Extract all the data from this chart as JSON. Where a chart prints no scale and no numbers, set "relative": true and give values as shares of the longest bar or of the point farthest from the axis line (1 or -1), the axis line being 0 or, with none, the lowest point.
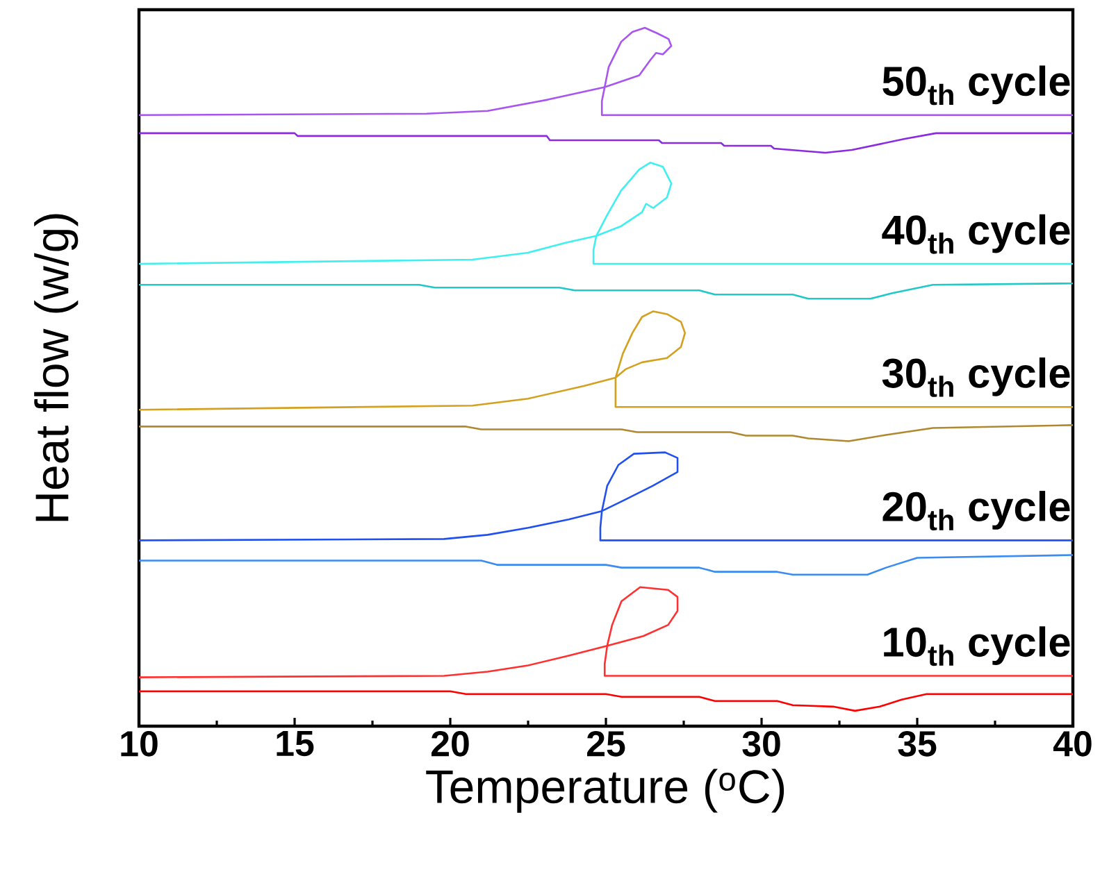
{
  "chart_data": {
    "type": "line",
    "relative": true,
    "xlabel": "Temperature ($^{o}$C)",
    "ylabel": "Heat flow  (w/g)",
    "xlim": [
      10,
      40
    ],
    "xticks": [
      10,
      15,
      20,
      25,
      30,
      35,
      40
    ],
    "series": [
      {
        "name": "10$_{th}$ cycle",
        "color": "#ff3030",
        "x": [
          40,
          24.96,
          24.96,
          25.04,
          25.2,
          25.5,
          26.1,
          27.0,
          27.3,
          27.3,
          27.0,
          26.2,
          25.04,
          23.8,
          22.5,
          21.2,
          19.8,
          10
        ],
        "values": [
          0.072,
          0.072,
          0.089,
          0.115,
          0.145,
          0.179,
          0.199,
          0.195,
          0.185,
          0.165,
          0.145,
          0.129,
          0.115,
          0.101,
          0.087,
          0.078,
          0.072,
          0.07
        ]
      },
      {
        "color": "#ff0000",
        "x": [
          10,
          20,
          20.5,
          25,
          25.5,
          28,
          28.5,
          30.5,
          31,
          32.3,
          33,
          33.8,
          34.5,
          35.3,
          40
        ],
        "values": [
          0.05,
          0.05,
          0.046,
          0.046,
          0.042,
          0.042,
          0.036,
          0.036,
          0.03,
          0.028,
          0.022,
          0.028,
          0.038,
          0.046,
          0.046
        ]
      },
      {
        "name": "20$_{th}$ cycle",
        "color": "#2050f0",
        "x": [
          40,
          24.82,
          24.82,
          24.87,
          25.04,
          25.4,
          25.9,
          26.9,
          27.3,
          27.3,
          26.5,
          25.6,
          24.87,
          23.8,
          22.5,
          21.2,
          19.8,
          10
        ],
        "values": [
          0.266,
          0.266,
          0.284,
          0.308,
          0.344,
          0.374,
          0.39,
          0.392,
          0.384,
          0.364,
          0.344,
          0.324,
          0.308,
          0.296,
          0.284,
          0.274,
          0.268,
          0.266
        ]
      },
      {
        "color": "#3a8cf0",
        "x": [
          10,
          21,
          21.5,
          25,
          25.5,
          28,
          28.5,
          30.5,
          31,
          33.4,
          34,
          35,
          40
        ],
        "values": [
          0.237,
          0.237,
          0.231,
          0.231,
          0.227,
          0.227,
          0.221,
          0.221,
          0.217,
          0.217,
          0.227,
          0.241,
          0.245
        ]
      },
      {
        "name": "30$_{th}$ cycle",
        "color": "#d4a020",
        "x": [
          40,
          25.31,
          25.31,
          25.54,
          25.85,
          26.16,
          26.52,
          26.96,
          27.41,
          27.54,
          27.41,
          26.96,
          26.16,
          25.63,
          25.31,
          24.29,
          22.5,
          20.71,
          10
        ],
        "values": [
          0.457,
          0.457,
          0.499,
          0.533,
          0.563,
          0.586,
          0.594,
          0.59,
          0.579,
          0.563,
          0.543,
          0.527,
          0.521,
          0.511,
          0.499,
          0.487,
          0.469,
          0.459,
          0.453
        ]
      },
      {
        "color": "#b08830",
        "x": [
          10,
          20.5,
          21,
          25.5,
          26,
          29,
          29.5,
          31,
          31.5,
          32.8,
          34,
          35.5,
          40
        ],
        "values": [
          0.429,
          0.429,
          0.425,
          0.425,
          0.421,
          0.421,
          0.416,
          0.416,
          0.412,
          0.408,
          0.417,
          0.427,
          0.431
        ]
      },
      {
        "name": "40$_{th}$ cycle",
        "color": "#40f0f0",
        "x": [
          40,
          24.6,
          24.6,
          24.69,
          25.04,
          25.49,
          26.07,
          26.43,
          26.83,
          27.1,
          26.96,
          26.52,
          26.29,
          26.16,
          25.49,
          24.69,
          23.7,
          22.5,
          20.71,
          10
        ],
        "values": [
          0.662,
          0.662,
          0.682,
          0.702,
          0.732,
          0.767,
          0.797,
          0.807,
          0.801,
          0.777,
          0.757,
          0.742,
          0.748,
          0.736,
          0.716,
          0.702,
          0.692,
          0.678,
          0.668,
          0.662
        ]
      },
      {
        "color": "#20c8c8",
        "x": [
          10,
          19,
          19.5,
          23.5,
          24,
          28,
          28.5,
          31,
          31.5,
          33.5,
          34.2,
          35.5,
          40
        ],
        "values": [
          0.632,
          0.632,
          0.628,
          0.628,
          0.624,
          0.624,
          0.618,
          0.618,
          0.612,
          0.612,
          0.62,
          0.632,
          0.634
        ]
      },
      {
        "name": "50$_{th}$ cycle",
        "color": "#a855f0",
        "x": [
          40,
          24.87,
          24.87,
          24.96,
          25.09,
          25.49,
          25.85,
          26.25,
          26.65,
          27.01,
          27.1,
          26.83,
          26.61,
          26.43,
          26.07,
          24.96,
          23.13,
          21.2,
          19.24,
          10
        ],
        "values": [
          0.875,
          0.875,
          0.895,
          0.915,
          0.944,
          0.98,
          0.994,
          1.0,
          0.992,
          0.984,
          0.974,
          0.962,
          0.964,
          0.954,
          0.932,
          0.915,
          0.897,
          0.881,
          0.877,
          0.875
        ]
      },
      {
        "color": "#8a2be2",
        "x": [
          10,
          15,
          15.1,
          23.1,
          23.2,
          26.7,
          26.8,
          28.7,
          28.8,
          30.3,
          30.4,
          32.05,
          32.9,
          34.6,
          35.6,
          40
        ],
        "values": [
          0.849,
          0.849,
          0.845,
          0.845,
          0.839,
          0.839,
          0.835,
          0.835,
          0.831,
          0.831,
          0.827,
          0.821,
          0.825,
          0.841,
          0.849,
          0.849
        ]
      }
    ]
  }
}
